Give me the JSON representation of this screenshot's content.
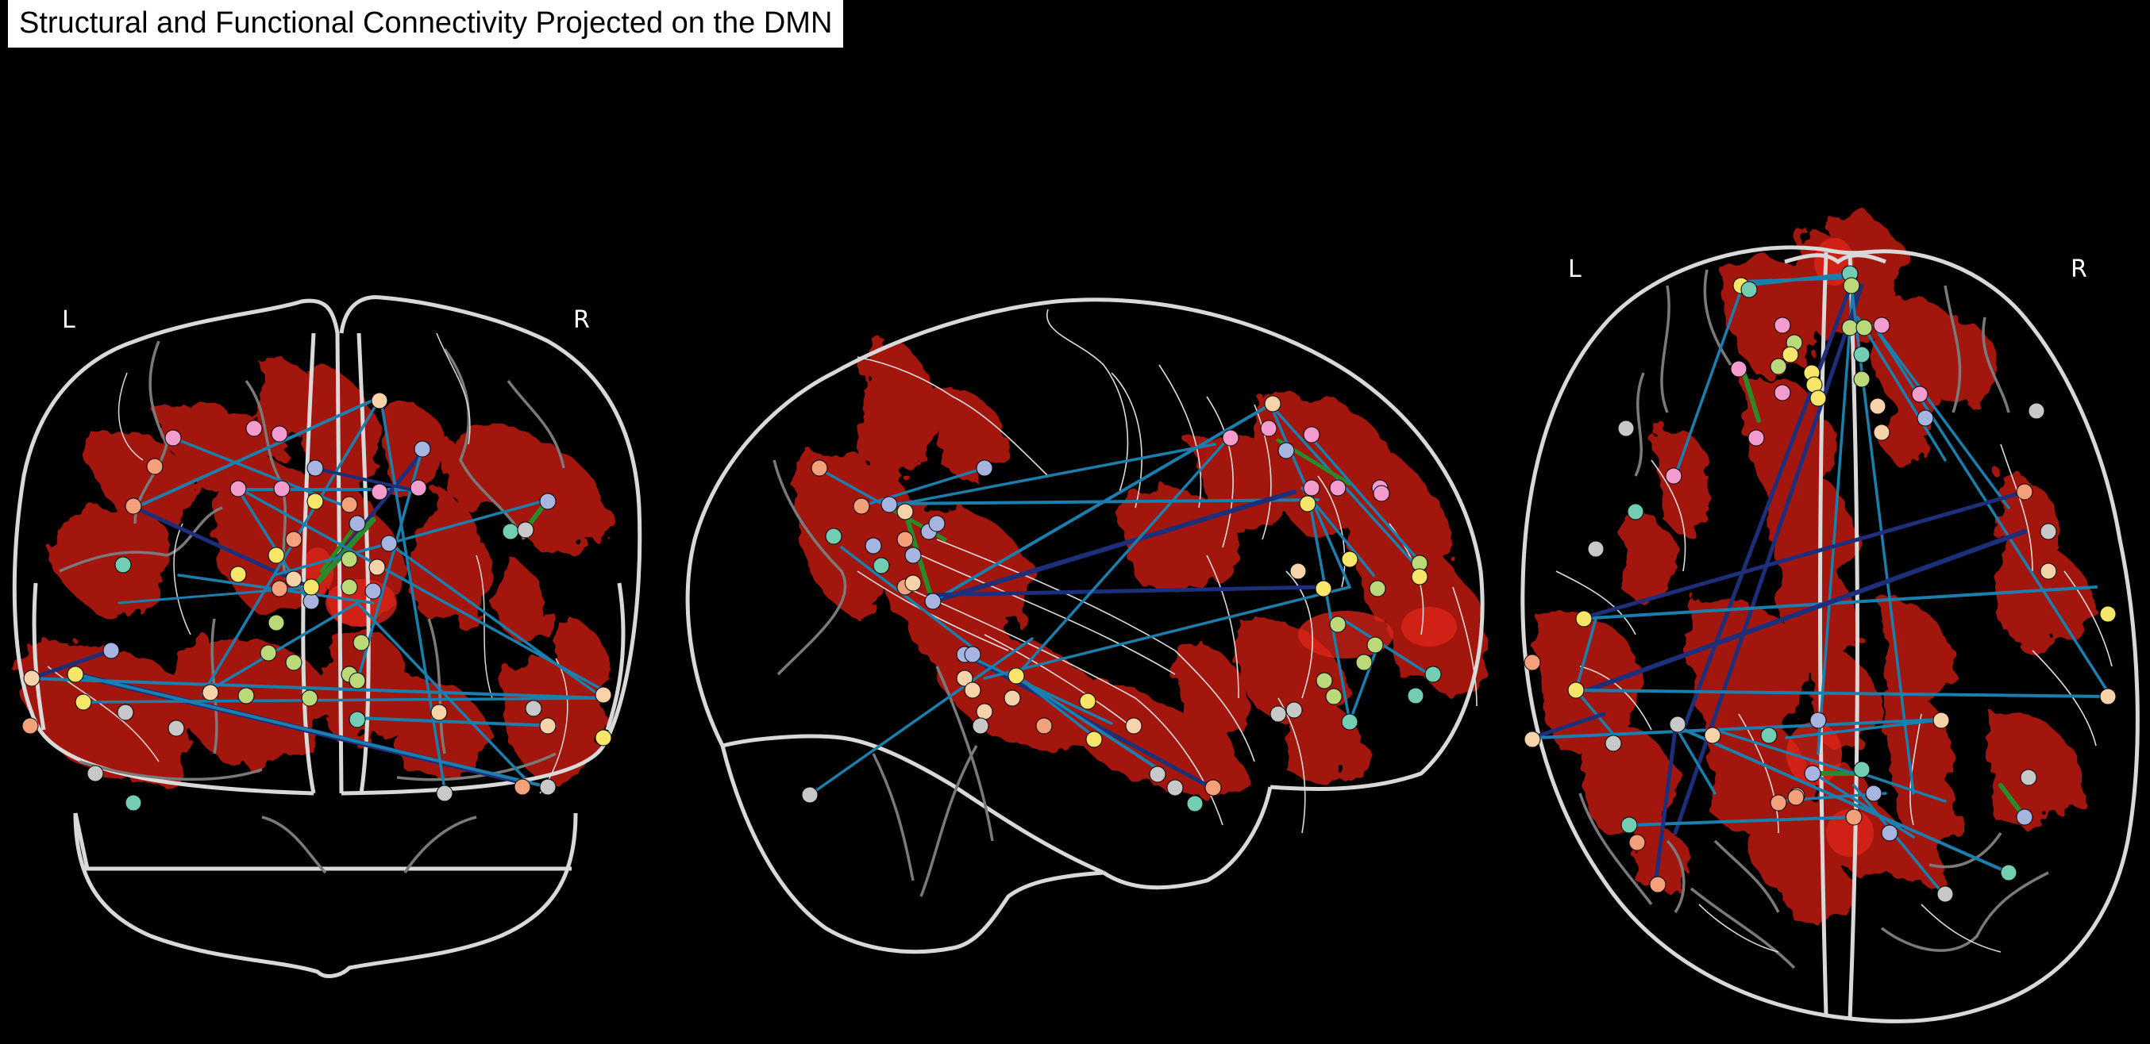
{
  "title": "Structural and Functional Connectivity Projected on the DMN",
  "views": {
    "coronal": {
      "left_label": "L",
      "right_label": "R"
    },
    "axial": {
      "left_label": "L",
      "right_label": "R"
    }
  },
  "colors": {
    "background": "#000000",
    "dmn_map": "#a31510",
    "dmn_map_core": "#e0251a",
    "outline": "#d9d9d9",
    "sulci": "#7a7a7a",
    "edge_light": "#1b7fae",
    "edge_dark": "#1d2f7a",
    "edge_green": "#2a8a2a",
    "node_palette": [
      "#f4a07a",
      "#f7e66a",
      "#f49ccd",
      "#a8b4e0",
      "#bcd97a",
      "#72cdb3",
      "#c8c8c8",
      "#f8d2a8"
    ]
  }
}
